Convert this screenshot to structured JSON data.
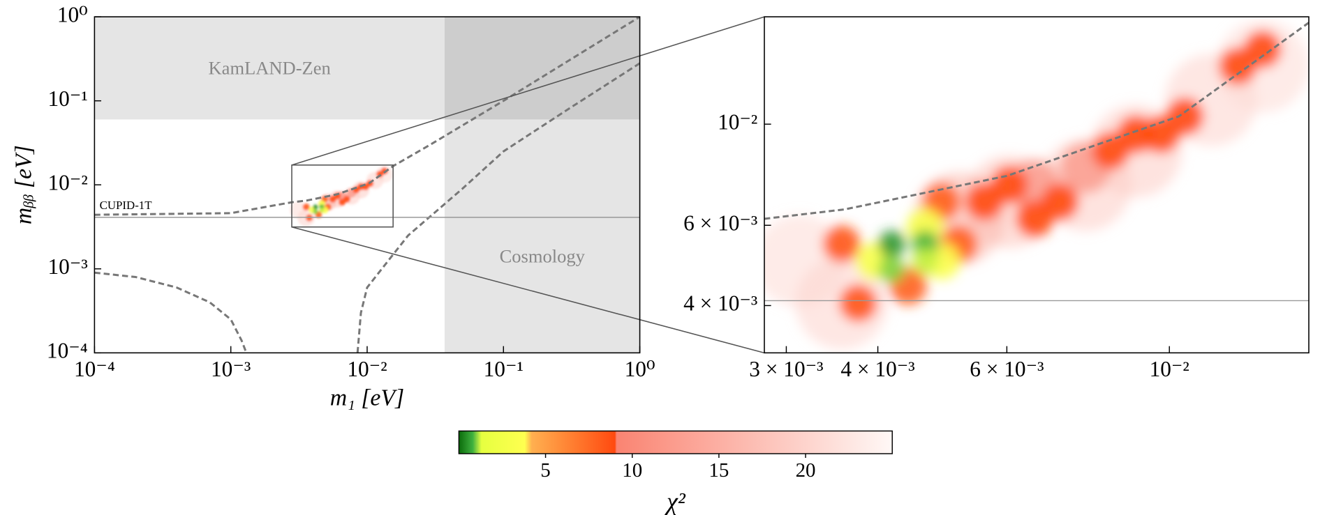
{
  "chart_data": [
    {
      "type": "line",
      "xscale": "log",
      "yscale": "log",
      "xlabel": "m₁ [eV]",
      "ylabel": "mᵦᵦ [eV]",
      "xlim": [
        0.0001,
        1
      ],
      "ylim": [
        0.0001,
        1
      ],
      "xticks": [
        {
          "value": 0.0001,
          "label": "10⁻⁴"
        },
        {
          "value": 0.001,
          "label": "10⁻³"
        },
        {
          "value": 0.01,
          "label": "10⁻²"
        },
        {
          "value": 0.1,
          "label": "10⁻¹"
        },
        {
          "value": 1,
          "label": "10⁰"
        }
      ],
      "yticks": [
        {
          "value": 0.0001,
          "label": "10⁻⁴"
        },
        {
          "value": 0.001,
          "label": "10⁻³"
        },
        {
          "value": 0.01,
          "label": "10⁻²"
        },
        {
          "value": 0.1,
          "label": "10⁻¹"
        },
        {
          "value": 1,
          "label": "10⁰"
        }
      ],
      "regions": [
        {
          "label": "KamLAND-Zen",
          "ymin": 0.06,
          "color": "#000000"
        },
        {
          "label": "Cosmology",
          "xmin": 0.037,
          "color": "#000000"
        }
      ],
      "hline": {
        "label": "CUPID-1T",
        "y": 0.0041,
        "color": "#999999"
      },
      "series": [
        {
          "x": [
            0.0001,
            0.001,
            0.0028,
            0.0036,
            0.006,
            0.0103,
            0.0155,
            0.03,
            0.1,
            0.3,
            1
          ],
          "values": [
            0.0044,
            0.0046,
            0.0062,
            0.0065,
            0.0077,
            0.0104,
            0.0167,
            0.031,
            0.1,
            0.3,
            1
          ],
          "color": "#777777",
          "linestyle": "dashed"
        },
        {
          "x": [
            0.0085,
            0.009,
            0.01,
            0.02,
            0.05,
            0.1,
            0.3,
            1
          ],
          "values": [
            0.0001,
            0.0003,
            0.0006,
            0.0025,
            0.009,
            0.025,
            0.08,
            0.28
          ],
          "color": "#777777",
          "linestyle": "dashed"
        },
        {
          "x": [
            0.0001,
            0.0002,
            0.0004,
            0.0007,
            0.001,
            0.0012,
            0.0013
          ],
          "values": [
            0.0009,
            0.0008,
            0.0006,
            0.0004,
            0.00025,
            0.00014,
            0.0001
          ],
          "color": "#777777",
          "linestyle": "dashed"
        }
      ]
    },
    {
      "type": "line",
      "xscale": "log",
      "yscale": "log",
      "xlim": [
        0.0028,
        0.0155
      ],
      "ylim": [
        0.00315,
        0.0172
      ],
      "xticks": [
        {
          "value": 0.003,
          "label": "3 × 10⁻³"
        },
        {
          "value": 0.004,
          "label": "4 × 10⁻³"
        },
        {
          "value": 0.006,
          "label": "6 × 10⁻³"
        },
        {
          "value": 0.01,
          "label": "10⁻²"
        }
      ],
      "yticks": [
        {
          "value": 0.004,
          "label": "4 × 10⁻³"
        },
        {
          "value": 0.006,
          "label": "6 × 10⁻³"
        },
        {
          "value": 0.01,
          "label": "10⁻²"
        }
      ],
      "series": [
        {
          "x": [
            0.0028,
            0.0036,
            0.006,
            0.0103,
            0.0155
          ],
          "values": [
            0.0062,
            0.0065,
            0.0077,
            0.0104,
            0.0167
          ],
          "color": "#777777",
          "linestyle": "dashed"
        }
      ],
      "density": {
        "x": [
          0.00313,
          0.00357,
          0.00605,
          0.00768,
          0.009,
          0.0114,
          0.0134,
          0.00516,
          0.00768,
          0.00655,
          0.00357,
          0.00376,
          0.00489,
          0.00516,
          0.0044,
          0.00559,
          0.00605,
          0.00655,
          0.00709,
          0.00831,
          0.009,
          0.00974,
          0.0105,
          0.0134,
          0.0124,
          0.00396,
          0.00464,
          0.00489,
          0.00418,
          0.00464,
          0.00418,
          0.00464
        ],
        "y": [
          0.00501,
          0.00405,
          0.00676,
          0.00736,
          0.00873,
          0.0113,
          0.0134,
          0.00621,
          0.00802,
          0.00736,
          0.00546,
          0.00405,
          0.00676,
          0.00546,
          0.00441,
          0.00676,
          0.00736,
          0.00621,
          0.00676,
          0.00873,
          0.0095,
          0.0095,
          0.0104,
          0.0146,
          0.0134,
          0.00501,
          0.00595,
          0.00501,
          0.00546,
          0.00546,
          0.0048,
          0.00501
        ],
        "chi2": [
          21,
          20,
          18,
          19,
          19,
          20,
          21,
          16,
          13,
          13,
          8.5,
          8.5,
          8,
          8,
          8,
          9,
          9,
          9,
          9,
          9,
          9,
          9,
          9,
          9,
          9,
          3,
          3,
          3.5,
          0.5,
          0.8,
          1,
          1.2
        ]
      }
    },
    {
      "type": "colorbar",
      "label": "χ²",
      "xlim": [
        0,
        25
      ],
      "xticks": [
        5,
        10,
        15,
        20
      ],
      "colorscale": [
        {
          "value": 0,
          "color": "#0b6b0b"
        },
        {
          "value": 0.8,
          "color": "#3fb03f"
        },
        {
          "value": 1.3,
          "color": "#e6ff40"
        },
        {
          "value": 3.8,
          "color": "#ffff50"
        },
        {
          "value": 4.2,
          "color": "#ffb050"
        },
        {
          "value": 9,
          "color": "#ff4a10"
        },
        {
          "value": 9.1,
          "color": "#fa8472"
        },
        {
          "value": 25,
          "color": "#fff8f6"
        }
      ]
    }
  ]
}
